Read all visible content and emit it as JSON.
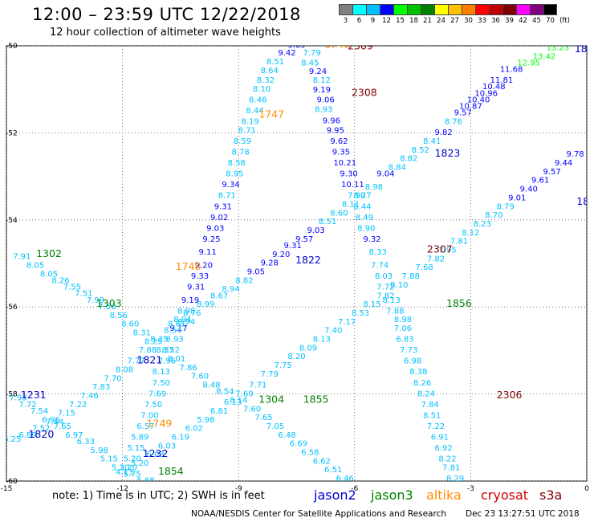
{
  "header": {
    "title": "12:00 – 23:59 UTC 12/22/2018",
    "subtitle": "12 hour collection of altimeter wave heights"
  },
  "color_legend": {
    "labels": [
      "3",
      "6",
      "9",
      "12",
      "15",
      "18",
      "21",
      "24",
      "27",
      "30",
      "33",
      "36",
      "39",
      "42",
      "45",
      "70"
    ],
    "unit": "(ft)",
    "colors": [
      "#7f7f7f",
      "#00ffff",
      "#00c0ff",
      "#0000ff",
      "#00ff00",
      "#00c000",
      "#008000",
      "#ffff00",
      "#ffc000",
      "#ff8000",
      "#ff0000",
      "#c00000",
      "#800000",
      "#ff00ff",
      "#800080",
      "#000000"
    ]
  },
  "note": "note: 1) Time is in UTC; 2) SWH is in feet",
  "satellites": [
    {
      "name": "jason2",
      "color": "#0000cc"
    },
    {
      "name": "jason3",
      "color": "#008000"
    },
    {
      "name": "altika",
      "color": "#ff8c00"
    },
    {
      "name": "cryosat",
      "color": "#cc0000"
    },
    {
      "name": "s3a",
      "color": "#800000"
    }
  ],
  "footer": {
    "center": "NOAA/NESDIS Center for Satellite Applications and Research",
    "right": "Dec 23 13:27:51 UTC 2018"
  },
  "map": {
    "x_ticks": [
      "-15",
      "-12",
      "-9",
      "-6",
      "-3",
      "0"
    ],
    "y_ticks": [
      "-50",
      "-52",
      "-54",
      "-56",
      "-58",
      "-60"
    ],
    "lon_range": [
      -15,
      0
    ],
    "lat_range": [
      -60,
      -50
    ],
    "grid": "dotted"
  },
  "time_labels": [
    {
      "text": "1746",
      "lon": -6.45,
      "lat": -50.05,
      "sat": "altika"
    },
    {
      "text": "2309",
      "lon": -5.85,
      "lat": -50.08,
      "sat": "s3a"
    },
    {
      "text": "2308",
      "lon": -5.75,
      "lat": -51.15,
      "sat": "s3a"
    },
    {
      "text": "1747",
      "lon": -8.15,
      "lat": -51.65,
      "sat": "altika"
    },
    {
      "text": "1823",
      "lon": -3.6,
      "lat": -52.55,
      "sat": "jason2"
    },
    {
      "text": "1302",
      "lon": -13.9,
      "lat": -54.85,
      "sat": "jason3"
    },
    {
      "text": "1748",
      "lon": -10.3,
      "lat": -55.15,
      "sat": "altika"
    },
    {
      "text": "1822",
      "lon": -7.2,
      "lat": -55.0,
      "sat": "jason2"
    },
    {
      "text": "2307",
      "lon": -3.8,
      "lat": -54.75,
      "sat": "s3a"
    },
    {
      "text": "1303",
      "lon": -12.35,
      "lat": -56.0,
      "sat": "jason3"
    },
    {
      "text": "1856",
      "lon": -3.3,
      "lat": -56.0,
      "sat": "jason3"
    },
    {
      "text": "1821",
      "lon": -11.3,
      "lat": -57.3,
      "sat": "jason2"
    },
    {
      "text": "1231",
      "lon": -14.3,
      "lat": -58.1,
      "sat": "jason2"
    },
    {
      "text": "1304",
      "lon": -8.15,
      "lat": -58.2,
      "sat": "jason3"
    },
    {
      "text": "1855",
      "lon": -7.0,
      "lat": -58.2,
      "sat": "jason3"
    },
    {
      "text": "2306",
      "lon": -2.0,
      "lat": -58.1,
      "sat": "s3a"
    },
    {
      "text": "1749",
      "lon": -11.05,
      "lat": -58.75,
      "sat": "altika"
    },
    {
      "text": "1820",
      "lon": -14.1,
      "lat": -59.0,
      "sat": "jason2"
    },
    {
      "text": "1232",
      "lon": -11.15,
      "lat": -59.45,
      "sat": "jason2"
    },
    {
      "text": "1854",
      "lon": -10.75,
      "lat": -59.85,
      "sat": "jason3"
    },
    {
      "text": "18",
      "lon": -0.15,
      "lat": -50.15,
      "sat": "jason2"
    },
    {
      "text": "18",
      "lon": -0.1,
      "lat": -53.65,
      "sat": "jason2"
    }
  ],
  "tracks": [
    {
      "id": "altika-pass",
      "points": [
        [
          -8.12,
          -50.0,
          "9.56"
        ],
        [
          -7.5,
          -50.05,
          "9.69"
        ],
        [
          -7.75,
          -50.22,
          "9.42"
        ],
        [
          -7.1,
          -50.22,
          "7.79"
        ],
        [
          -8.05,
          -50.42,
          "8.51"
        ],
        [
          -7.15,
          -50.45,
          "8.45"
        ],
        [
          -8.2,
          -50.63,
          "8.64"
        ],
        [
          -6.95,
          -50.65,
          "9.24"
        ],
        [
          -8.3,
          -50.85,
          "8.32"
        ],
        [
          -6.85,
          -50.85,
          "8.12"
        ],
        [
          -8.4,
          -51.05,
          "8.10"
        ],
        [
          -6.85,
          -51.07,
          "9.19"
        ],
        [
          -8.5,
          -51.3,
          "8.46"
        ],
        [
          -6.75,
          -51.3,
          "9.06"
        ],
        [
          -8.58,
          -51.55,
          "8.44"
        ],
        [
          -6.8,
          -51.52,
          "8.93"
        ],
        [
          -8.7,
          -51.8,
          "8.19"
        ],
        [
          -6.6,
          -51.78,
          "9.96"
        ],
        [
          -8.78,
          -52.0,
          "8.71"
        ],
        [
          -6.5,
          -52.0,
          "9.95"
        ],
        [
          -8.9,
          -52.25,
          "8.59"
        ],
        [
          -6.4,
          -52.25,
          "9.62"
        ],
        [
          -8.95,
          -52.5,
          "8.78"
        ],
        [
          -6.35,
          -52.5,
          "9.35"
        ],
        [
          -9.05,
          -52.75,
          "8.58"
        ],
        [
          -6.25,
          -52.75,
          "10.21"
        ],
        [
          -9.1,
          -53.0,
          "8.95"
        ],
        [
          -6.15,
          -53.0,
          "9.30"
        ],
        [
          -9.2,
          -53.25,
          "9.34"
        ],
        [
          -6.05,
          -53.25,
          "10.11"
        ],
        [
          -9.3,
          -53.5,
          "8.71"
        ],
        [
          -5.95,
          -53.5,
          "7.90"
        ],
        [
          -9.4,
          -53.75,
          "9.31"
        ],
        [
          -5.8,
          -53.75,
          "8.44"
        ],
        [
          -9.5,
          -54.0,
          "9.02"
        ],
        [
          -5.75,
          -54.0,
          "8.49"
        ],
        [
          -9.6,
          -54.25,
          "9.03"
        ],
        [
          -5.7,
          -54.25,
          "8.90"
        ],
        [
          -9.7,
          -54.5,
          "9.25"
        ],
        [
          -5.55,
          -54.5,
          "9.32"
        ],
        [
          -9.8,
          -54.8,
          "9.11"
        ],
        [
          -5.4,
          -54.8,
          "8.33"
        ],
        [
          -9.9,
          -55.1,
          "9.20"
        ],
        [
          -5.35,
          -55.1,
          "7.74"
        ],
        [
          -10.0,
          -55.35,
          "9.33"
        ],
        [
          -5.25,
          -55.35,
          "8.03"
        ],
        [
          -10.1,
          -55.6,
          "9.31"
        ],
        [
          -5.2,
          -55.6,
          "7.72"
        ],
        [
          -10.25,
          -55.9,
          "9.19"
        ],
        [
          -5.05,
          -55.9,
          "8.13"
        ],
        [
          -10.35,
          -56.15,
          "8.98"
        ],
        [
          -4.95,
          -56.15,
          "7.88"
        ],
        [
          -10.45,
          -56.35,
          "8.94"
        ],
        [
          -4.75,
          -56.35,
          "8.98"
        ],
        [
          -10.55,
          -56.55,
          "9.17"
        ],
        [
          -4.75,
          -56.55,
          "7.06"
        ],
        [
          -10.65,
          -56.8,
          "8.93"
        ],
        [
          -4.7,
          -56.8,
          "6.83"
        ],
        [
          -10.75,
          -57.05,
          "8.52"
        ],
        [
          -4.6,
          -57.05,
          "7.73"
        ],
        [
          -10.85,
          -57.3,
          "7.96"
        ],
        [
          -4.5,
          -57.3,
          "6.98"
        ],
        [
          -11.0,
          -57.55,
          "8.13"
        ],
        [
          -4.35,
          -57.55,
          "8.38"
        ],
        [
          -11.0,
          -57.8,
          "7.50"
        ],
        [
          -4.25,
          -57.8,
          "8.26"
        ],
        [
          -11.1,
          -58.05,
          "7.69"
        ],
        [
          -4.15,
          -58.05,
          "8.24"
        ],
        [
          -11.2,
          -58.3,
          "7.50"
        ],
        [
          -4.05,
          -58.3,
          "7.84"
        ],
        [
          -11.3,
          -58.55,
          "7.00"
        ],
        [
          -4.0,
          -58.55,
          "8.51"
        ],
        [
          -11.4,
          -58.8,
          "6.57"
        ],
        [
          -3.9,
          -58.8,
          "7.22"
        ],
        [
          -11.55,
          -59.05,
          "5.89"
        ],
        [
          -3.8,
          -59.05,
          "6.91"
        ],
        [
          -11.65,
          -59.3,
          "5.15"
        ],
        [
          -3.7,
          -59.3,
          "6.92"
        ],
        [
          -11.75,
          -59.55,
          "5.20"
        ],
        [
          -3.6,
          -59.55,
          "8.22"
        ],
        [
          -11.85,
          -59.75,
          "3.20"
        ],
        [
          -3.5,
          -59.75,
          "7.81"
        ],
        [
          -3.4,
          -60.0,
          "8.29"
        ],
        [
          -3.3,
          -60.2,
          "7.15"
        ]
      ]
    },
    {
      "id": "jason2-diag",
      "points": [
        [
          -10.6,
          -56.45,
          "8.61"
        ],
        [
          -10.2,
          -56.2,
          "8.76"
        ],
        [
          -9.85,
          -56.0,
          "8.99"
        ],
        [
          -9.5,
          -55.8,
          "8.67"
        ],
        [
          -9.2,
          -55.65,
          "8.94"
        ],
        [
          -8.85,
          -55.45,
          "8.82"
        ],
        [
          -8.55,
          -55.25,
          "9.05"
        ],
        [
          -8.2,
          -55.05,
          "9.28"
        ],
        [
          -7.9,
          -54.85,
          "9.20"
        ],
        [
          -7.6,
          -54.65,
          "9.31"
        ],
        [
          -7.3,
          -54.5,
          "9.57"
        ],
        [
          -7.0,
          -54.3,
          "9.03"
        ],
        [
          -6.7,
          -54.1,
          "8.51"
        ],
        [
          -6.4,
          -53.9,
          "8.60"
        ],
        [
          -6.1,
          -53.7,
          "8.11"
        ],
        [
          -5.8,
          -53.5,
          "8.27"
        ],
        [
          -5.5,
          -53.3,
          "8.98"
        ],
        [
          -5.2,
          -53.0,
          "9.04"
        ],
        [
          -4.9,
          -52.85,
          "8.84"
        ],
        [
          -4.6,
          -52.65,
          "8.82"
        ],
        [
          -4.3,
          -52.45,
          "8.52"
        ],
        [
          -4.0,
          -52.25,
          "8.41"
        ],
        [
          -3.7,
          -52.05,
          "9.82"
        ],
        [
          -3.45,
          -51.8,
          "8.76"
        ],
        [
          -3.2,
          -51.6,
          "9.57"
        ],
        [
          -3.0,
          -51.45,
          "10.87"
        ],
        [
          -2.8,
          -51.3,
          "10.40"
        ],
        [
          -2.6,
          -51.15,
          "10.96"
        ],
        [
          -2.4,
          -51.0,
          "10.48"
        ],
        [
          -2.2,
          -50.85,
          "11.81"
        ],
        [
          -1.95,
          -50.6,
          "11.68"
        ],
        [
          -1.5,
          -50.45,
          "12.95"
        ],
        [
          -1.1,
          -50.3,
          "13.42"
        ],
        [
          -0.75,
          -50.1,
          "13.23"
        ],
        [
          -0.55,
          -49.95,
          "13.81"
        ]
      ]
    },
    {
      "id": "jason3-diag",
      "points": [
        [
          -14.6,
          -54.9,
          "7.91"
        ],
        [
          -14.25,
          -55.1,
          "8.05"
        ],
        [
          -13.9,
          -55.3,
          "8.05"
        ],
        [
          -13.6,
          -55.45,
          "8.26"
        ],
        [
          -13.3,
          -55.6,
          "7.55"
        ],
        [
          -13.0,
          -55.75,
          "7.51"
        ],
        [
          -12.7,
          -55.9,
          "7.99"
        ],
        [
          -12.4,
          -56.05,
          "7.50"
        ],
        [
          -12.1,
          -56.25,
          "8.56"
        ],
        [
          -11.8,
          -56.45,
          "8.60"
        ],
        [
          -11.5,
          -56.65,
          "8.31"
        ],
        [
          -11.2,
          -56.85,
          "8.25"
        ],
        [
          -10.9,
          -57.05,
          "8.37"
        ],
        [
          -10.6,
          -57.25,
          "8.01"
        ],
        [
          -10.3,
          -57.45,
          "7.86"
        ],
        [
          -10.0,
          -57.65,
          "7.60"
        ],
        [
          -9.7,
          -57.85,
          "8.48"
        ],
        [
          -9.35,
          -58.0,
          "8.54"
        ],
        [
          -9.0,
          -58.2,
          "8.14"
        ],
        [
          -8.65,
          -58.4,
          "7.60"
        ],
        [
          -8.35,
          -58.6,
          "7.65"
        ],
        [
          -8.05,
          -58.8,
          "7.05"
        ],
        [
          -7.75,
          -59.0,
          "6.48"
        ],
        [
          -7.45,
          -59.2,
          "6.69"
        ],
        [
          -7.15,
          -59.4,
          "6.58"
        ],
        [
          -6.85,
          -59.6,
          "6.62"
        ],
        [
          -6.55,
          -59.8,
          "6.51"
        ],
        [
          -6.25,
          -60.0,
          "6.46"
        ],
        [
          -5.95,
          -60.2,
          "6.60"
        ],
        [
          -5.6,
          -60.35,
          "6.52"
        ],
        [
          -5.3,
          -60.5,
          "6.48"
        ],
        [
          -4.9,
          -60.7,
          "7.43"
        ]
      ]
    },
    {
      "id": "jason2-south",
      "points": [
        [
          -14.7,
          -58.15,
          "7.93"
        ],
        [
          -14.45,
          -58.3,
          "7.72"
        ],
        [
          -14.15,
          -58.45,
          "7.54"
        ],
        [
          -13.85,
          -58.65,
          "6.96"
        ],
        [
          -13.55,
          -58.8,
          "7.65"
        ],
        [
          -13.25,
          -59.0,
          "6.97"
        ],
        [
          -12.95,
          -59.15,
          "6.33"
        ],
        [
          -12.6,
          -59.35,
          "5.98"
        ],
        [
          -12.35,
          -59.55,
          "5.15"
        ],
        [
          -12.05,
          -59.75,
          "5.20"
        ],
        [
          -11.75,
          -59.9,
          "5.75"
        ],
        [
          -11.4,
          -60.05,
          "5.68"
        ]
      ]
    },
    {
      "id": "jason3-south",
      "points": [
        [
          -14.85,
          -59.1,
          "6.25"
        ],
        [
          -14.45,
          -59.0,
          "6.89"
        ],
        [
          -14.1,
          -58.85,
          "7.52"
        ],
        [
          -13.75,
          -58.7,
          "7.44"
        ],
        [
          -13.45,
          -58.5,
          "7.15"
        ],
        [
          -13.15,
          -58.3,
          "7.22"
        ],
        [
          -12.85,
          -58.1,
          "7.46"
        ],
        [
          -12.55,
          -57.9,
          "7.83"
        ],
        [
          -12.25,
          -57.7,
          "7.70"
        ],
        [
          -11.95,
          -57.5,
          "8.08"
        ],
        [
          -11.65,
          -57.3,
          "7.77"
        ],
        [
          -11.35,
          -57.05,
          "7.88"
        ],
        [
          -11.05,
          -56.8,
          "8.35"
        ],
        [
          -10.7,
          -56.6,
          "8.54"
        ],
        [
          -10.35,
          -56.4,
          "8.94"
        ]
      ]
    },
    {
      "id": "s3a-diag",
      "points": [
        [
          -11.95,
          -59.85,
          "4.13"
        ],
        [
          -11.55,
          -59.65,
          "5.20"
        ],
        [
          -11.15,
          -59.45,
          "6.03"
        ],
        [
          -10.85,
          -59.25,
          "6.03"
        ],
        [
          -10.5,
          -59.05,
          "6.19"
        ],
        [
          -10.15,
          -58.85,
          "6.02"
        ],
        [
          -9.85,
          -58.65,
          "5.98"
        ],
        [
          -9.5,
          -58.45,
          "6.81"
        ],
        [
          -9.15,
          -58.25,
          "6.13"
        ],
        [
          -8.85,
          -58.05,
          "7.69"
        ],
        [
          -8.5,
          -57.85,
          "7.71"
        ],
        [
          -8.2,
          -57.6,
          "7.79"
        ],
        [
          -7.85,
          -57.4,
          "7.75"
        ],
        [
          -7.5,
          -57.2,
          "8.20"
        ],
        [
          -7.2,
          -57.0,
          "8.09"
        ],
        [
          -6.85,
          -56.8,
          "8.13"
        ],
        [
          -6.55,
          -56.6,
          "7.40"
        ],
        [
          -6.2,
          -56.4,
          "7.17"
        ],
        [
          -5.85,
          -56.2,
          "8.53"
        ],
        [
          -5.55,
          -56.0,
          "8.15"
        ],
        [
          -5.2,
          -55.8,
          "7.82"
        ],
        [
          -4.85,
          -55.55,
          "8.10"
        ],
        [
          -4.55,
          -55.35,
          "7.88"
        ],
        [
          -4.2,
          -55.15,
          "7.68"
        ],
        [
          -3.9,
          -54.95,
          "7.82"
        ],
        [
          -3.6,
          -54.75,
          "7.95"
        ],
        [
          -3.3,
          -54.55,
          "7.81"
        ],
        [
          -3.0,
          -54.35,
          "8.12"
        ],
        [
          -2.7,
          -54.15,
          "8.23"
        ],
        [
          -2.4,
          -53.95,
          "8.70"
        ],
        [
          -2.1,
          -53.75,
          "8.79"
        ],
        [
          -1.8,
          -53.55,
          "9.01"
        ],
        [
          -1.5,
          -53.35,
          "9.40"
        ],
        [
          -1.2,
          -53.15,
          "9.61"
        ],
        [
          -0.9,
          -52.95,
          "9.57"
        ],
        [
          -0.6,
          -52.75,
          "9.44"
        ],
        [
          -0.3,
          -52.55,
          "9.78"
        ]
      ]
    }
  ]
}
